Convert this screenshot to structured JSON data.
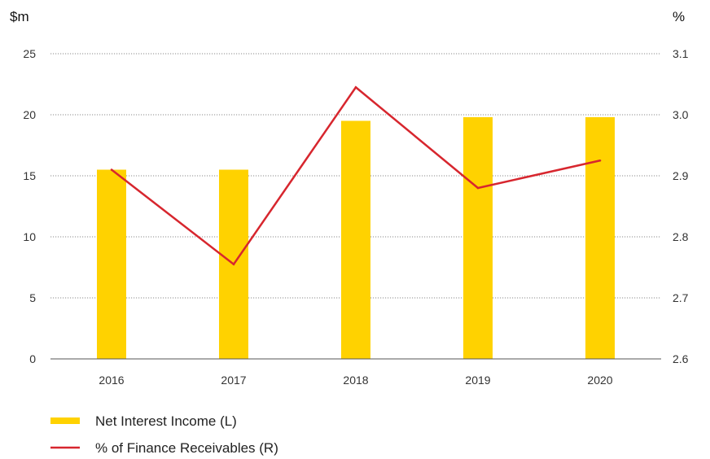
{
  "chart_data": {
    "type": "bar",
    "categories": [
      "2016",
      "2017",
      "2018",
      "2019",
      "2020"
    ],
    "left_axis": {
      "unit": "$m",
      "ylim": [
        0,
        25
      ],
      "ticks": [
        "0",
        "5",
        "10",
        "15",
        "20",
        "25"
      ]
    },
    "right_axis": {
      "unit": "%",
      "ylim": [
        2.6,
        3.1
      ],
      "ticks": [
        "2.6",
        "2.7",
        "2.8",
        "2.9",
        "3.0",
        "3.1"
      ]
    },
    "series": [
      {
        "name": "Net Interest Income (L)",
        "type": "bar",
        "axis": "left",
        "color": "#FFD200",
        "values": [
          15.5,
          15.5,
          19.5,
          19.8,
          19.8
        ]
      },
      {
        "name": "% of Finance Receivables (R)",
        "type": "line",
        "axis": "right",
        "color": "#D7262E",
        "values": [
          2.91,
          2.755,
          3.045,
          2.88,
          2.925
        ]
      }
    ],
    "grid": true,
    "legend_position": "bottom-left"
  }
}
